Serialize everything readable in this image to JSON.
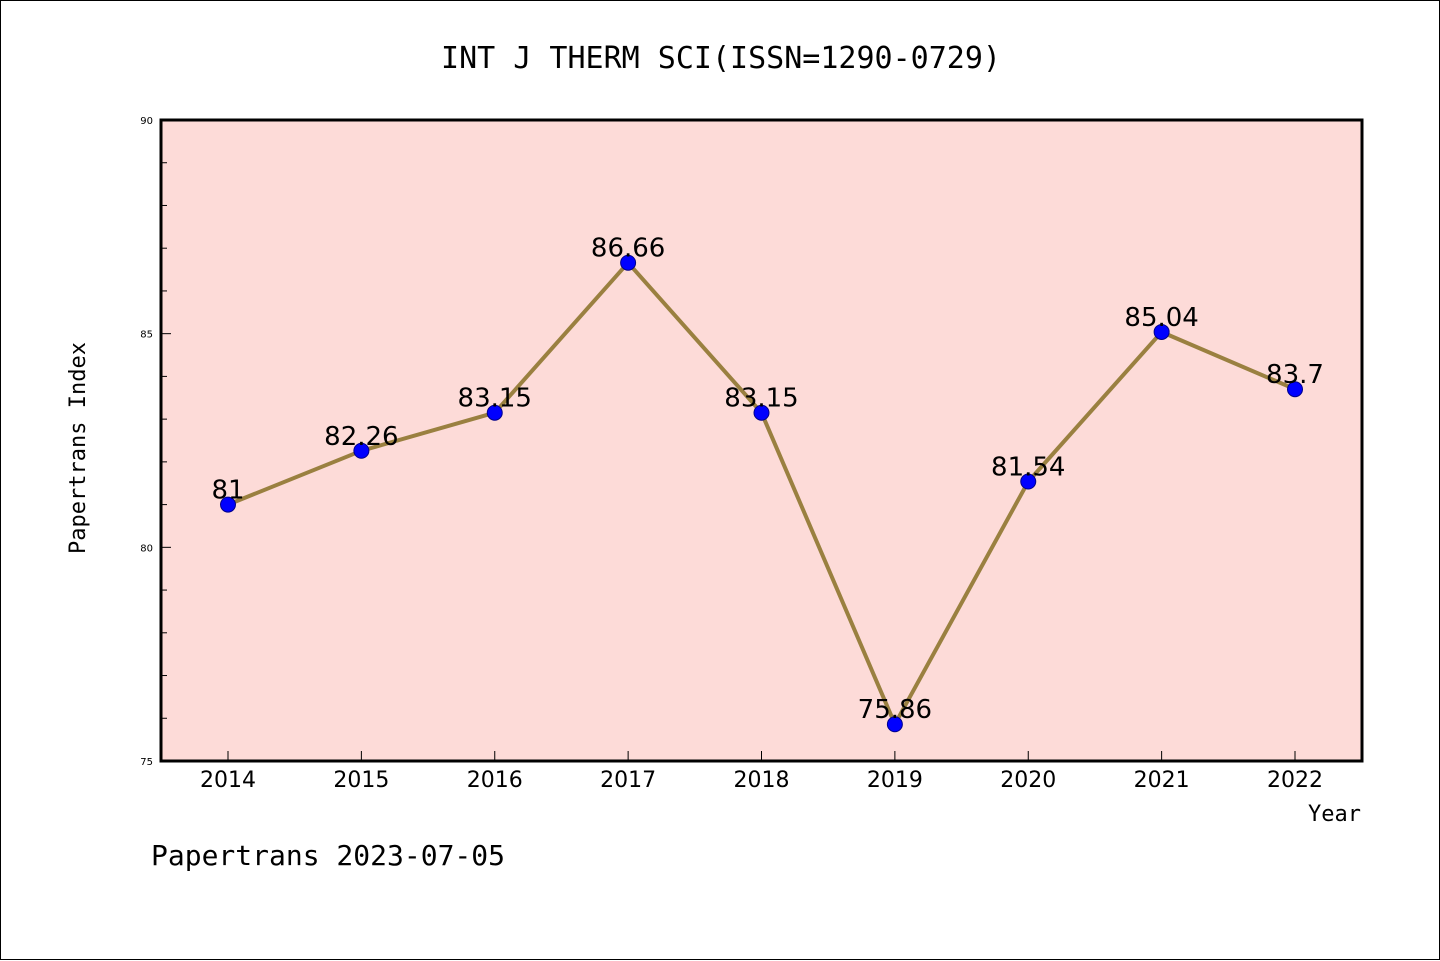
{
  "chart_data": {
    "type": "line",
    "title": "INT J THERM SCI(ISSN=1290-0729)",
    "xlabel": "Year",
    "ylabel": "Papertrans Index",
    "categories": [
      "2014",
      "2015",
      "2016",
      "2017",
      "2018",
      "2019",
      "2020",
      "2021",
      "2022"
    ],
    "series": [
      {
        "values": [
          81,
          82.26,
          83.15,
          86.66,
          83.15,
          75.86,
          81.54,
          85.04,
          83.7
        ]
      }
    ],
    "data_labels": [
      "81",
      "82.26",
      "83.15",
      "86.66",
      "83.15",
      "75.86",
      "81.54",
      "85.04",
      "83.7"
    ],
    "ylim": [
      75,
      90
    ],
    "yticks": [
      "75",
      "80",
      "85",
      "90"
    ],
    "grid": false,
    "legend": "none",
    "colors": {
      "plot_bg": "#fddbd8",
      "line": "#9a8040",
      "marker": "#0000ff"
    }
  },
  "footer": "Papertrans 2023-07-05"
}
